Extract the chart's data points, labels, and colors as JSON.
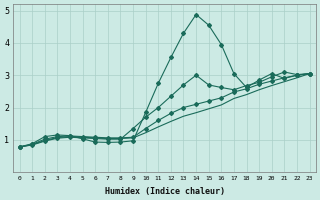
{
  "xlabel": "Humidex (Indice chaleur)",
  "bg_color": "#cceae4",
  "grid_color": "#aacfc8",
  "line_color": "#1a6b5a",
  "xlim": [
    -0.5,
    23.5
  ],
  "ylim": [
    0,
    5.2
  ],
  "xticks": [
    0,
    1,
    2,
    3,
    4,
    5,
    6,
    7,
    8,
    9,
    10,
    11,
    12,
    13,
    14,
    15,
    16,
    17,
    18,
    19,
    20,
    21,
    22,
    23
  ],
  "yticks": [
    1,
    2,
    3,
    4,
    5
  ],
  "line1_x": [
    0,
    1,
    2,
    3,
    4,
    5,
    6,
    7,
    8,
    9,
    10,
    11,
    12,
    13,
    14,
    15,
    16,
    17,
    18,
    19,
    20,
    21,
    22,
    23
  ],
  "line1_y": [
    0.78,
    0.88,
    1.1,
    1.15,
    1.13,
    1.03,
    0.93,
    0.92,
    0.93,
    0.97,
    1.85,
    2.75,
    3.55,
    4.3,
    4.88,
    4.55,
    3.95,
    3.05,
    2.62,
    2.85,
    3.05,
    2.9,
    3.0,
    3.05
  ],
  "line2_x": [
    0,
    1,
    2,
    3,
    4,
    5,
    6,
    7,
    8,
    9,
    10,
    11,
    12,
    13,
    14,
    15,
    16,
    17,
    18,
    19,
    20,
    21,
    22,
    23
  ],
  "line2_y": [
    0.78,
    0.86,
    1.02,
    1.1,
    1.12,
    1.1,
    1.08,
    1.06,
    1.06,
    1.08,
    1.35,
    1.6,
    1.82,
    2.0,
    2.1,
    2.2,
    2.3,
    2.48,
    2.58,
    2.72,
    2.82,
    2.92,
    3.0,
    3.05
  ],
  "line3_x": [
    0,
    1,
    2,
    3,
    4,
    5,
    6,
    7,
    8,
    9,
    10,
    11,
    12,
    13,
    14,
    15,
    16,
    17,
    18,
    19,
    20,
    21,
    22,
    23
  ],
  "line3_y": [
    0.78,
    0.85,
    0.98,
    1.07,
    1.1,
    1.08,
    1.06,
    1.04,
    1.04,
    1.06,
    1.22,
    1.4,
    1.57,
    1.73,
    1.84,
    1.96,
    2.08,
    2.28,
    2.4,
    2.55,
    2.68,
    2.8,
    2.92,
    3.05
  ],
  "line4_x": [
    0,
    1,
    2,
    3,
    4,
    5,
    6,
    7,
    8,
    9,
    10,
    11,
    12,
    13,
    14,
    15,
    16,
    17,
    18,
    19,
    20,
    21,
    22,
    23
  ],
  "line4_y": [
    0.78,
    0.84,
    0.96,
    1.05,
    1.08,
    1.06,
    1.04,
    1.02,
    1.02,
    1.35,
    1.7,
    2.0,
    2.35,
    2.7,
    3.0,
    2.7,
    2.62,
    2.55,
    2.68,
    2.78,
    2.95,
    3.1,
    3.02,
    3.05
  ]
}
